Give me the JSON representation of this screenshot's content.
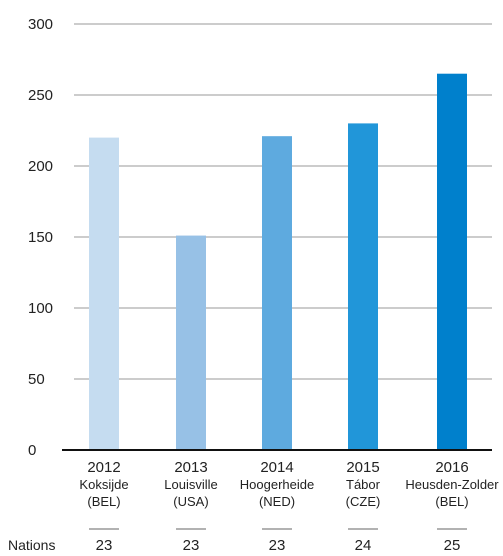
{
  "chart_data": {
    "type": "bar",
    "categories": [
      "2012",
      "2013",
      "2014",
      "2015",
      "2016"
    ],
    "venues": [
      "Koksijde",
      "Louisville",
      "Hoogerheide",
      "Tábor",
      "Heusden-Zolder"
    ],
    "countries": [
      "(BEL)",
      "(USA)",
      "(NED)",
      "(CZE)",
      "(BEL)"
    ],
    "values": [
      220,
      151,
      221,
      230,
      265
    ],
    "colors": [
      "#c5dcf0",
      "#97c1e6",
      "#5eaadf",
      "#2196d9",
      "#0080cc"
    ],
    "ylim": [
      0,
      300
    ],
    "yticks": [
      0,
      50,
      100,
      150,
      200,
      250,
      300
    ],
    "grid": true,
    "nations_label": "Nations",
    "nations": [
      "23",
      "23",
      "23",
      "24",
      "25"
    ]
  }
}
